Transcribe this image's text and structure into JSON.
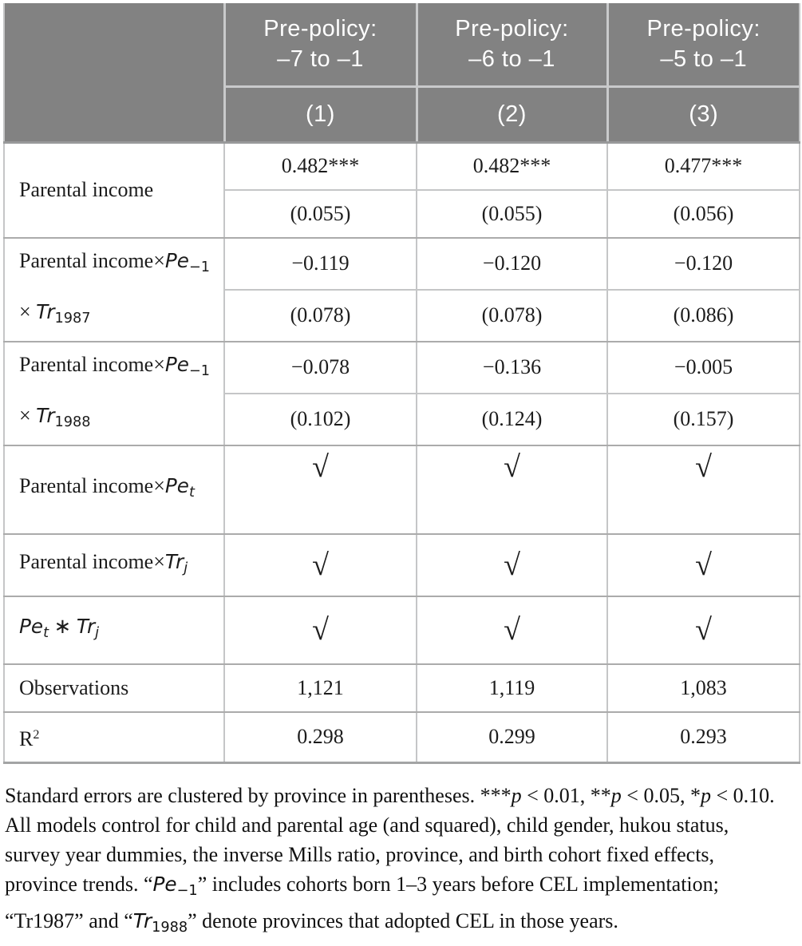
{
  "colors": {
    "header_bg": "#828282",
    "header_text": "#ffffff",
    "body_text": "#1c1c1c",
    "border_light": "#c5c6c7",
    "border_group": "#ababab"
  },
  "header": {
    "models": [
      {
        "line1": "Pre-policy:",
        "line2": "–7 to –1",
        "number": "(1)"
      },
      {
        "line1": "Pre-policy:",
        "line2": "–6 to –1",
        "number": "(2)"
      },
      {
        "line1": "Pre-policy:",
        "line2": "–5 to –1",
        "number": "(3)"
      }
    ]
  },
  "groups": [
    {
      "label": [
        {
          "t": "Parental income"
        }
      ],
      "estimates": [
        "0.482***",
        "0.482***",
        "0.477***"
      ],
      "std_errors": [
        "(0.055)",
        "(0.055)",
        "(0.056)"
      ]
    },
    {
      "label": [
        {
          "t": "Parental income×"
        },
        {
          "t": "Pe",
          "s": "m"
        },
        {
          "t": "−1",
          "s": "dsub"
        },
        {
          "t": " × "
        },
        {
          "t": "Tr",
          "s": "m"
        },
        {
          "t": "1987",
          "s": "dsub"
        }
      ],
      "estimates": [
        "−0.119",
        "−0.120",
        "−0.120"
      ],
      "std_errors": [
        "(0.078)",
        "(0.078)",
        "(0.086)"
      ]
    },
    {
      "label": [
        {
          "t": "Parental income×"
        },
        {
          "t": "Pe",
          "s": "m"
        },
        {
          "t": "−1",
          "s": "dsub"
        },
        {
          "t": " × "
        },
        {
          "t": "Tr",
          "s": "m"
        },
        {
          "t": "1988",
          "s": "dsub"
        }
      ],
      "estimates": [
        "−0.078",
        "−0.136",
        "−0.005"
      ],
      "std_errors": [
        "(0.102)",
        "(0.124)",
        "(0.157)"
      ]
    }
  ],
  "controls": [
    {
      "label": [
        {
          "t": "Parental income×"
        },
        {
          "t": "Pe",
          "s": "m"
        },
        {
          "t": "t",
          "s": "msub"
        }
      ],
      "values": [
        "√",
        "√",
        "√"
      ]
    },
    {
      "label": [
        {
          "t": "Parental income×"
        },
        {
          "t": "Tr",
          "s": "m"
        },
        {
          "t": "j",
          "s": "msub"
        }
      ],
      "values": [
        "√",
        "√",
        "√"
      ]
    },
    {
      "label": [
        {
          "t": "Pe",
          "s": "m"
        },
        {
          "t": "t",
          "s": "msub"
        },
        {
          "t": " ∗ "
        },
        {
          "t": "Tr",
          "s": "m"
        },
        {
          "t": "j",
          "s": "msub"
        }
      ],
      "values": [
        "√",
        "√",
        "√"
      ]
    }
  ],
  "stats": [
    {
      "label": [
        {
          "t": "Observations"
        }
      ],
      "values": [
        "1,121",
        "1,119",
        "1,083"
      ]
    },
    {
      "label": [
        {
          "t": "R"
        },
        {
          "t": "2",
          "s": "sup"
        }
      ],
      "values": [
        "0.298",
        "0.299",
        "0.293"
      ]
    }
  ],
  "footnote_lines": [
    [
      {
        "t": "Standard errors are clustered by province in parentheses. ***"
      },
      {
        "t": "p",
        "s": "it"
      },
      {
        "t": " < 0.01, **"
      },
      {
        "t": "p",
        "s": "it"
      },
      {
        "t": " < 0.05, *"
      },
      {
        "t": "p",
        "s": "it"
      },
      {
        "t": " < 0.10."
      }
    ],
    [
      {
        "t": "All models control for child and parental age (and squared), child gender, hukou status,"
      }
    ],
    [
      {
        "t": "survey year dummies, the inverse Mills ratio, province, and birth cohort fixed effects,"
      }
    ],
    [
      {
        "t": "province trends. “"
      },
      {
        "t": "Pe",
        "s": "m"
      },
      {
        "t": "−1",
        "s": "dsub"
      },
      {
        "t": "” includes cohorts born 1–3 years before CEL implementation;"
      }
    ],
    [
      {
        "t": "“Tr1987” and “"
      },
      {
        "t": "Tr",
        "s": "m"
      },
      {
        "t": "1988",
        "s": "dsub"
      },
      {
        "t": "” denote provinces that adopted CEL in those years."
      }
    ]
  ]
}
